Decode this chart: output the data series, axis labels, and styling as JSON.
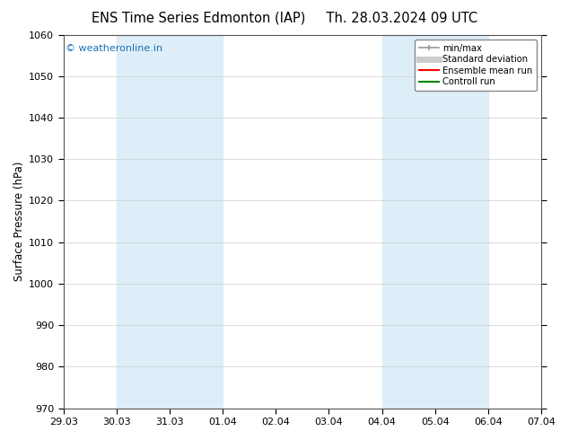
{
  "title_left": "ENS Time Series Edmonton (IAP)",
  "title_right": "Th. 28.03.2024 09 UTC",
  "ylabel": "Surface Pressure (hPa)",
  "ylim": [
    970,
    1060
  ],
  "yticks": [
    970,
    980,
    990,
    1000,
    1010,
    1020,
    1030,
    1040,
    1050,
    1060
  ],
  "xtick_labels": [
    "29.03",
    "30.03",
    "31.03",
    "01.04",
    "02.04",
    "03.04",
    "04.04",
    "05.04",
    "06.04",
    "07.04"
  ],
  "xlim": [
    0,
    9
  ],
  "shaded_bands": [
    {
      "x_start": 1,
      "x_end": 3,
      "color": "#ddeef8"
    },
    {
      "x_start": 6,
      "x_end": 8,
      "color": "#ddeef8"
    }
  ],
  "watermark": "© weatheronline.in",
  "watermark_color": "#1a6fb5",
  "bg_color": "#ffffff",
  "plot_bg_color": "#ffffff",
  "grid_color": "#cccccc",
  "border_color": "#555555",
  "title_fontsize": 10.5,
  "label_fontsize": 8.5,
  "tick_fontsize": 8
}
